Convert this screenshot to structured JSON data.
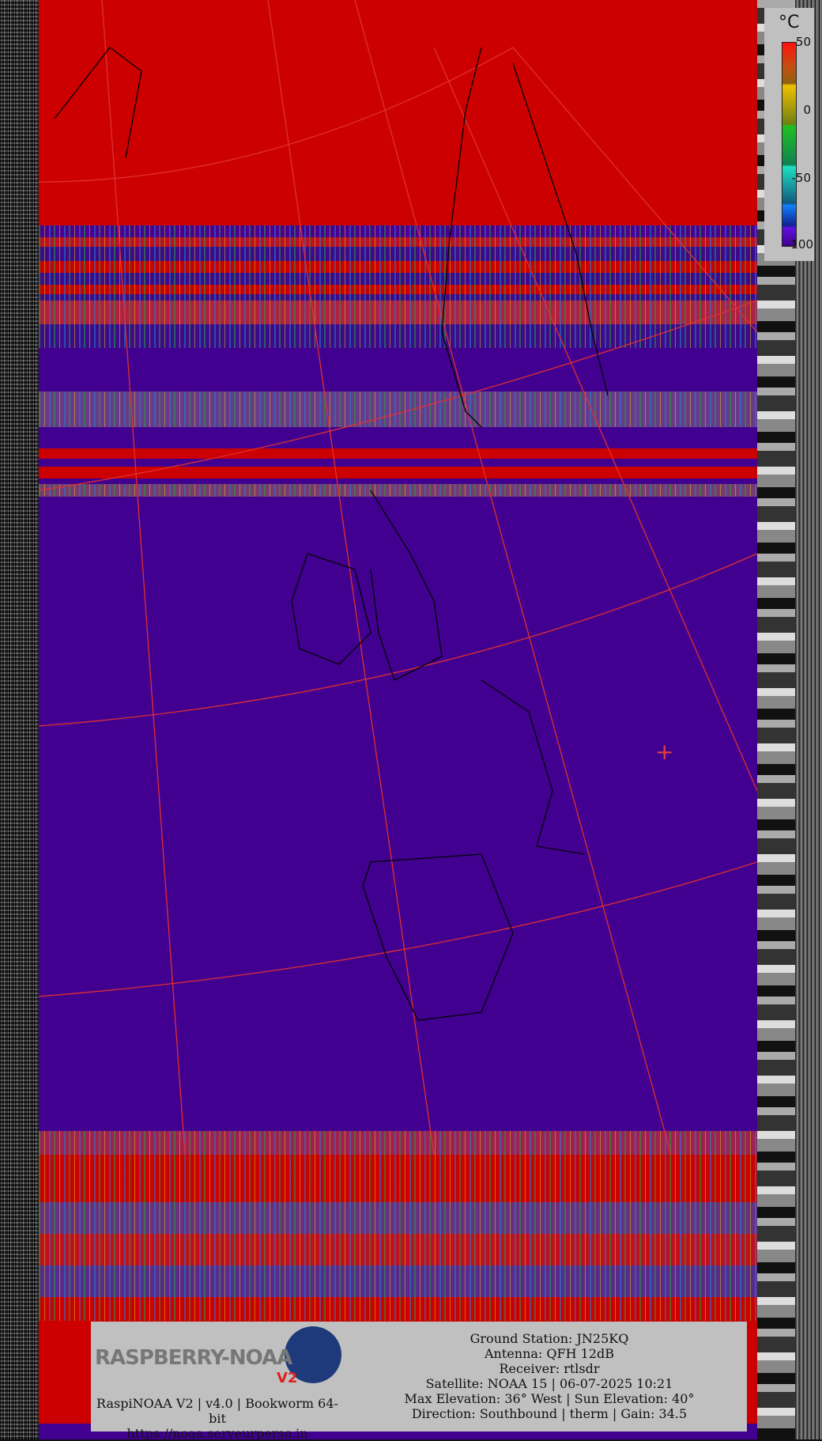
{
  "image": {
    "type": "NOAA APT thermal satellite image",
    "colors": {
      "hot": "#cc0000",
      "cold": "#420090",
      "graticule": "#e03030",
      "coastline": "#000000"
    }
  },
  "legend": {
    "unit": "°C",
    "ticks": [
      "50",
      "0",
      "-50",
      "-100"
    ],
    "range": [
      -100,
      50
    ]
  },
  "info": {
    "logo": {
      "text": "RASPBERRY-NOAA",
      "badge": "V2"
    },
    "left_lines": [
      "RaspiNOAA V2 | v4.0 | Bookworm 64-bit",
      "https://noaa.serveurperso.in"
    ],
    "right_lines": [
      "Ground Station: JN25KQ",
      "Antenna: QFH 12dB",
      "Receiver: rtlsdr",
      "Satellite: NOAA 15 | 06-07-2025 10:21",
      "Max Elevation: 36° West | Sun Elevation: 40°",
      "Direction: Southbound | therm | Gain: 34.5"
    ]
  },
  "marker": {
    "icon": "crosshair-icon",
    "symbol": "+"
  }
}
